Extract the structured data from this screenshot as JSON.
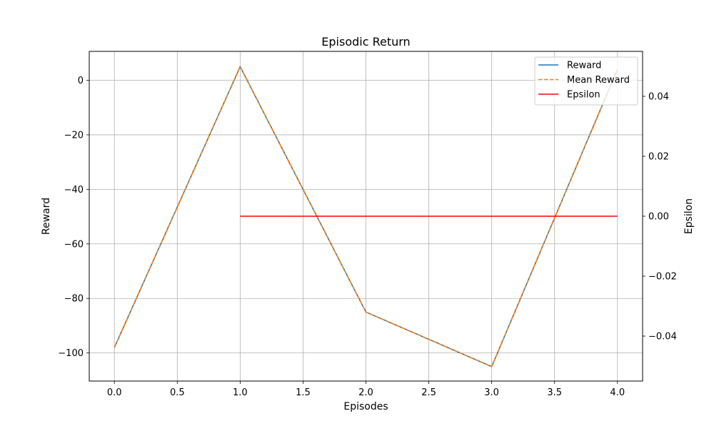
{
  "chart_data": {
    "type": "line",
    "title": "Episodic Return",
    "xlabel": "Episodes",
    "ylabel": "Reward",
    "y2label": "Epsilon",
    "xlim": [
      -0.2,
      4.2
    ],
    "ylim": [
      -110.3,
      10.6
    ],
    "y2lim": [
      -0.055,
      0.055
    ],
    "xticks": [
      0.0,
      0.5,
      1.0,
      1.5,
      2.0,
      2.5,
      3.0,
      3.5,
      4.0
    ],
    "xtick_labels": [
      "0.0",
      "0.5",
      "1.0",
      "1.5",
      "2.0",
      "2.5",
      "3.0",
      "3.5",
      "4.0"
    ],
    "yticks": [
      0,
      -20,
      -40,
      -60,
      -80,
      -100
    ],
    "ytick_labels": [
      "0",
      "−20",
      "−40",
      "−60",
      "−80",
      "−100"
    ],
    "y2ticks": [
      0.04,
      0.02,
      0.0,
      -0.02,
      -0.04
    ],
    "y2tick_labels": [
      "0.04",
      "0.02",
      "0.00",
      "−0.02",
      "−0.04"
    ],
    "grid": true,
    "legend_position": "top-right",
    "series": [
      {
        "name": "Reward",
        "axis": "left",
        "color": "#1f77b4",
        "style": "solid",
        "x": [
          0,
          1,
          2,
          3,
          4
        ],
        "values": [
          -98,
          5,
          -85,
          -105,
          4
        ]
      },
      {
        "name": "Mean Reward",
        "axis": "left",
        "color": "#ff7f0e",
        "style": "dashed",
        "x": [
          0,
          1,
          2,
          3,
          4
        ],
        "values": [
          -98,
          5,
          -85,
          -105,
          4
        ]
      },
      {
        "name": "Epsilon",
        "axis": "right",
        "color": "#ff0000",
        "style": "solid",
        "x": [
          1,
          2,
          3,
          4
        ],
        "values": [
          0.0,
          0.0,
          0.0,
          0.0
        ]
      }
    ]
  }
}
